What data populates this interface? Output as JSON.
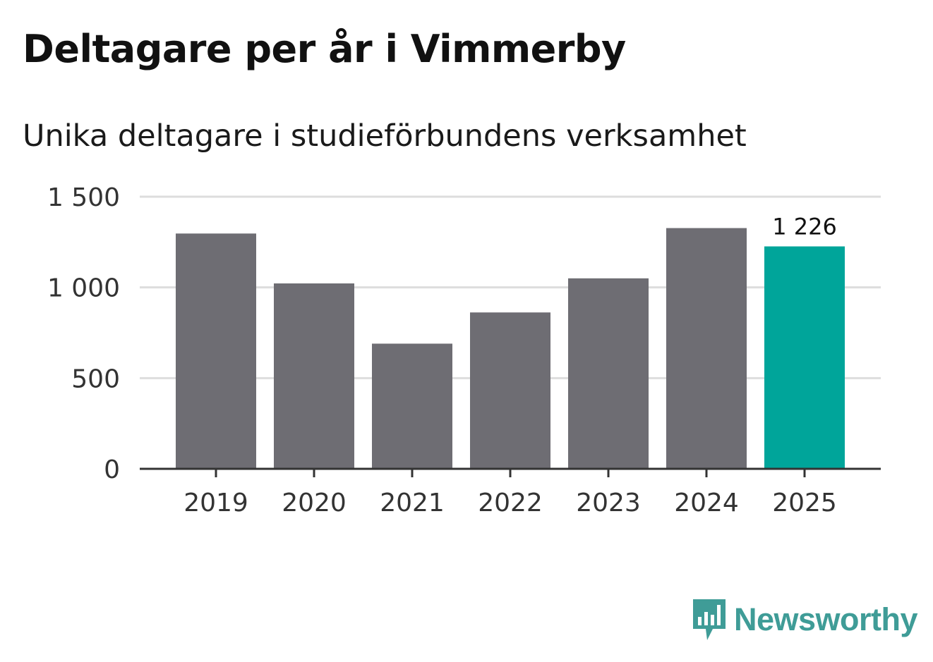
{
  "header": {
    "title": "Deltagare per år i Vimmerby",
    "subtitle": "Unika deltagare i studieförbundens verksamhet"
  },
  "chart_data": {
    "type": "bar",
    "title": "Deltagare per år i Vimmerby",
    "subtitle": "Unika deltagare i studieförbundens verksamhet",
    "xlabel": "",
    "ylabel": "",
    "categories": [
      "2019",
      "2020",
      "2021",
      "2022",
      "2023",
      "2024",
      "2025"
    ],
    "values": [
      1297,
      1022,
      690,
      862,
      1050,
      1327,
      1226
    ],
    "ylim": [
      0,
      1500
    ],
    "yticks": [
      0,
      500,
      1000,
      1500
    ],
    "ytick_labels": [
      "0",
      "500",
      "1 000",
      "1 500"
    ],
    "grid": true,
    "highlight_index": 6,
    "highlight_label": "1 226",
    "colors": {
      "bar": "#6e6d73",
      "highlight": "#00a59a",
      "grid": "#dddddd",
      "axis": "#333333"
    }
  },
  "brand": {
    "name": "Newsworthy",
    "logo_icon": "newsworthy-logo-icon",
    "color": "#3f9c97"
  }
}
